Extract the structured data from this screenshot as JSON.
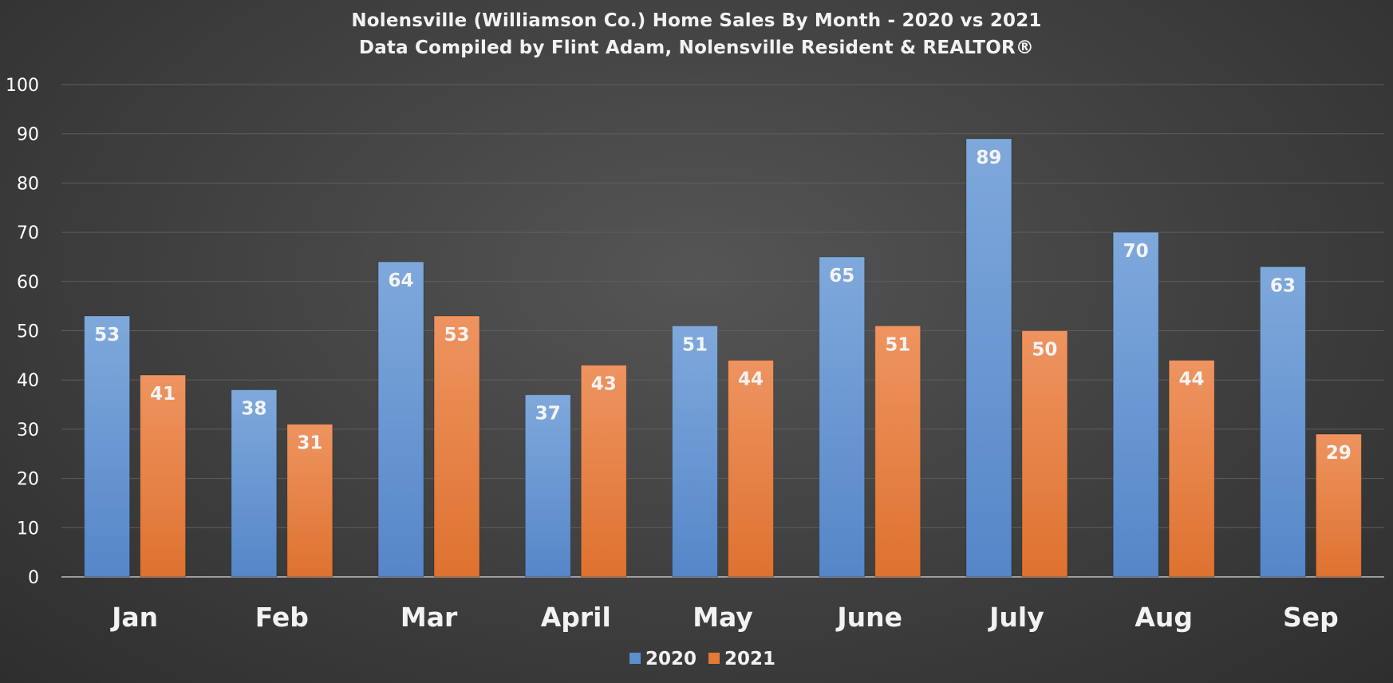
{
  "colors": {
    "series_2020": "#5b8fcf",
    "series_2021": "#e47a37",
    "background": "#404040"
  },
  "chart_data": {
    "type": "bar",
    "title": "Nolensville (Williamson Co.) Home Sales By Month - 2020 vs 2021",
    "subtitle": "Data Compiled by Flint Adam, Nolensville Resident & REALTOR®",
    "categories": [
      "Jan",
      "Feb",
      "Mar",
      "April",
      "May",
      "June",
      "July",
      "Aug",
      "Sep"
    ],
    "series": [
      {
        "name": "2020",
        "values": [
          53,
          38,
          64,
          37,
          51,
          65,
          89,
          70,
          63
        ]
      },
      {
        "name": "2021",
        "values": [
          41,
          31,
          53,
          43,
          44,
          51,
          50,
          44,
          29
        ]
      }
    ],
    "yticks": [
      "0",
      "10",
      "20",
      "30",
      "40",
      "50",
      "60",
      "70",
      "80",
      "90",
      "100"
    ],
    "ylim": [
      0,
      100
    ],
    "xlabel": "",
    "ylabel": "",
    "grid": true,
    "legend_position": "bottom"
  }
}
